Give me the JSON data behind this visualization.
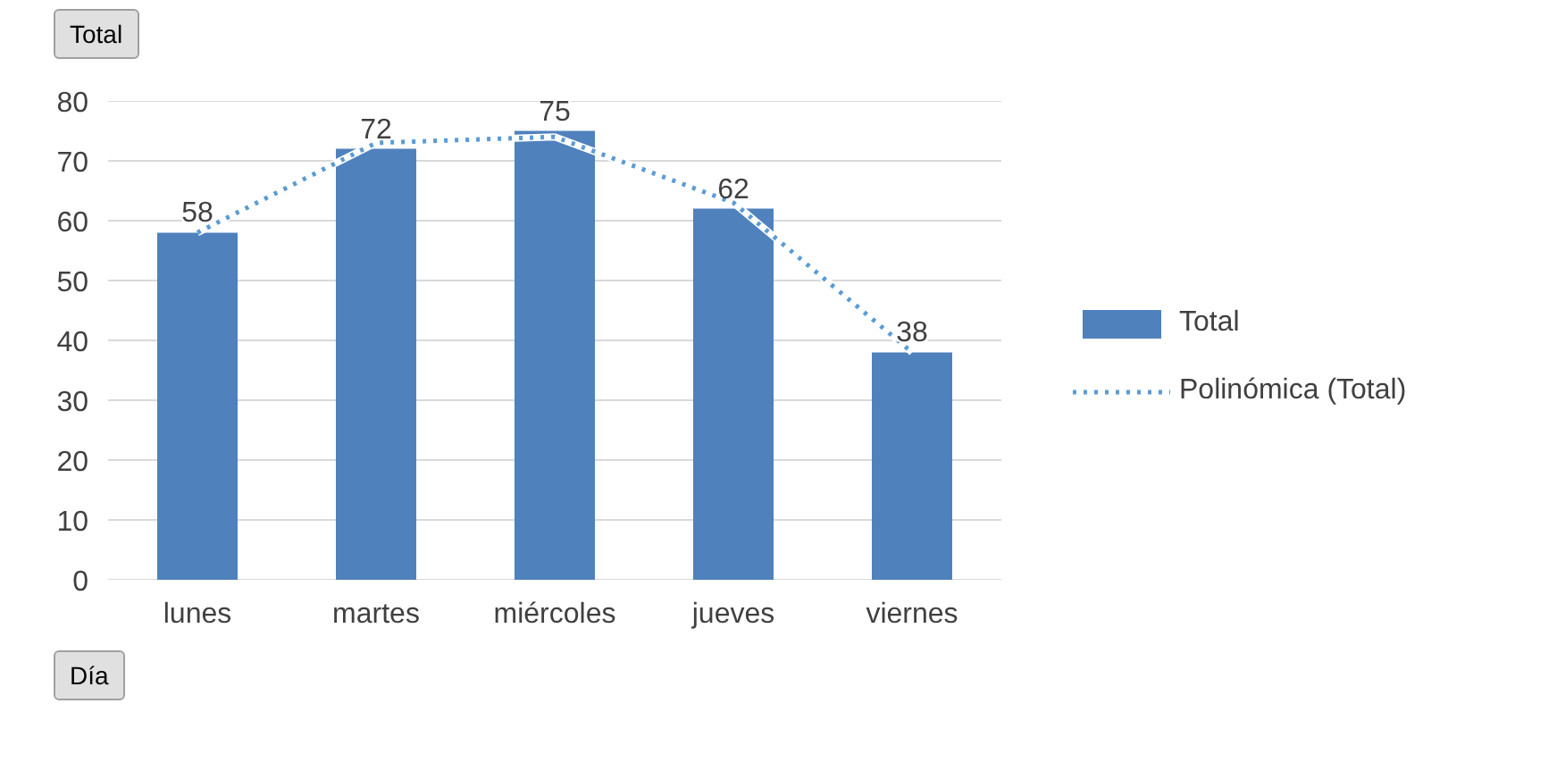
{
  "chart_data": {
    "type": "bar",
    "categories": [
      "lunes",
      "martes",
      "miércoles",
      "jueves",
      "viernes"
    ],
    "series": [
      {
        "name": "Total",
        "color": "#4f81bd",
        "values": [
          58,
          72,
          75,
          62,
          38
        ],
        "value_labels": [
          "58",
          "72",
          "75",
          "62",
          "38"
        ]
      },
      {
        "name": "Polinómica (Total)",
        "type": "line",
        "color": "#5b9bd5",
        "line_style": "dotted",
        "values": [
          58,
          73,
          74,
          63,
          38
        ]
      }
    ],
    "ylim": [
      0,
      80
    ],
    "yticks": [
      0,
      10,
      20,
      30,
      40,
      50,
      60,
      70,
      80
    ],
    "grid": "y",
    "legend": "right",
    "annotations": [
      "Total",
      "Día"
    ]
  }
}
